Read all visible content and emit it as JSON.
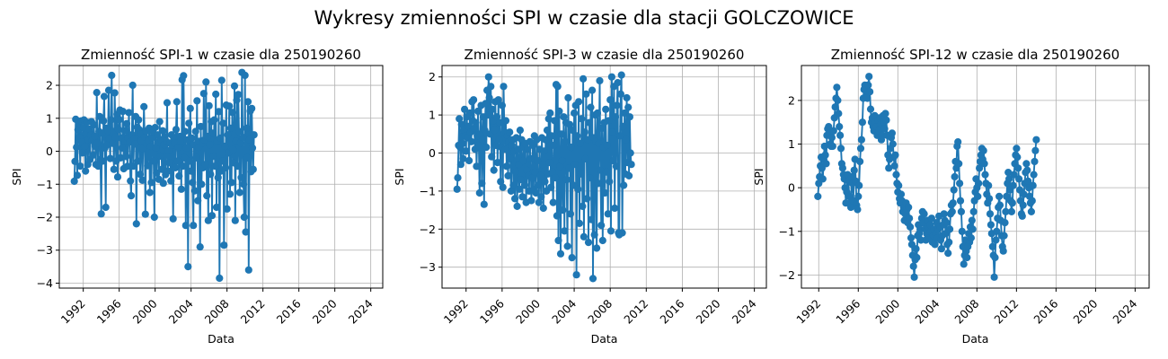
{
  "figure": {
    "suptitle": "Wykresy zmienności SPI w czasie dla stacji GOLCZOWICE",
    "series_color": "#1f77b4"
  },
  "chart_data": [
    {
      "type": "line",
      "title": "Zmienność SPI-1 w czasie dla 250190260",
      "xlabel": "Data",
      "ylabel": "SPI",
      "x_start": "1991-01",
      "x_step": "month",
      "x_tick_labels": [
        "1992",
        "1996",
        "2000",
        "2004",
        "2008",
        "2012",
        "2016",
        "2020",
        "2024"
      ],
      "xlim": [
        "1989-05",
        "2025-05"
      ],
      "y_ticks": [
        -4,
        -3,
        -2,
        -1,
        0,
        1,
        2
      ],
      "ylim": [
        -4.15,
        2.6
      ],
      "grid": true,
      "marker": "circle",
      "values": [
        -0.91,
        -0.31,
        0.97,
        0.12,
        -0.73,
        0.65,
        0.83,
        0.41,
        -0.45,
        0.92,
        0.28,
        -0.05,
        0.71,
        0.95,
        0.15,
        -0.6,
        0.52,
        0.88,
        -0.4,
        0.35,
        0.67,
        -0.25,
        0.48,
        0.9,
        0.33,
        -0.12,
        0.8,
        0.45,
        0.15,
        -0.4,
        1.78,
        0.25,
        -0.45,
        0.6,
        1.05,
        -0.25,
        -1.9,
        0.55,
        -0.3,
        0.92,
        1.66,
        0.1,
        -1.7,
        0.7,
        0.2,
        0.63,
        1.85,
        0.39,
        -0.22,
        0.95,
        2.3,
        0.24,
        0.6,
        -0.55,
        1.77,
        0.43,
        -0.3,
        1.12,
        -0.78,
        0.66,
        0.96,
        1.25,
        -0.2,
        0.4,
        0.1,
        1.21,
        -0.53,
        0.63,
        0.3,
        -0.16,
        0.84,
        -0.46,
        0.39,
        1.17,
        0.28,
        -0.9,
        -1.35,
        0.5,
        2.0,
        -0.45,
        0.37,
        0.22,
        1.05,
        -2.2,
        0.73,
        -0.3,
        0.95,
        0.65,
        -0.7,
        0.52,
        0.31,
        -0.88,
        0.08,
        1.35,
        0.43,
        -1.91,
        0.61,
        0.2,
        -0.44,
        0.33,
        0.7,
        -1.25,
        0.15,
        -0.95,
        0.41,
        0.58,
        -0.3,
        -2.0,
        0.72,
        0.1,
        -0.66,
        0.5,
        0.28,
        -0.85,
        0.9,
        -0.15,
        0.35,
        -0.55,
        0.62,
        -0.97,
        0.2,
        0.44,
        -0.71,
        0.3,
        1.47,
        -0.6,
        0.02,
        -0.35,
        0.25,
        -0.9,
        0.5,
        0.18,
        -2.05,
        0.38,
        0.25,
        -0.5,
        0.66,
        1.5,
        -0.3,
        0.12,
        -0.75,
        0.45,
        0.3,
        -1.15,
        2.17,
        -0.45,
        2.29,
        -0.2,
        0.6,
        -2.25,
        0.1,
        0.35,
        -3.5,
        0.85,
        -0.3,
        1.3,
        -0.6,
        0.4,
        -0.95,
        -2.25,
        0.2,
        -1.2,
        0.6,
        -0.2,
        1.53,
        -1.5,
        0.12,
        0.3,
        -2.9,
        0.75,
        -1.0,
        0.25,
        -0.5,
        1.75,
        0.35,
        -0.4,
        2.1,
        -1.35,
        0.45,
        -2.1,
        1.38,
        0.2,
        -0.7,
        0.9,
        -1.95,
        0.55,
        -0.15,
        0.95,
        -0.45,
        1.73,
        -1.7,
        0.3,
        -0.8,
        1.2,
        -3.85,
        0.4,
        -0.6,
        2.15,
        -0.3,
        0.85,
        -2.85,
        0.15,
        -0.5,
        1.4,
        -1.75,
        0.5,
        -0.05,
        1.37,
        -1.3,
        0.7,
        -0.95,
        1.18,
        0.05,
        -0.35,
        1.98,
        -2.1,
        0.3,
        1.55,
        -0.45,
        1.72,
        0.6,
        -1.25,
        0.25,
        -0.8,
        2.39,
        0.42,
        -1.0,
        -2.0,
        2.3,
        -2.45,
        0.7,
        -0.2,
        1.5,
        -3.6,
        0.35,
        1.22,
        -0.62,
        1.3,
        0.1,
        -0.55,
        0.5
      ]
    },
    {
      "type": "line",
      "title": "Zmienność SPI-3 w czasie dla 250190260",
      "xlabel": "Data",
      "ylabel": "SPI",
      "x_start": "1991-01",
      "x_step": "month",
      "x_tick_labels": [
        "1992",
        "1996",
        "2000",
        "2004",
        "2008",
        "2012",
        "2016",
        "2020",
        "2024"
      ],
      "xlim": [
        "1989-05",
        "2025-05"
      ],
      "y_ticks": [
        -3,
        -2,
        -1,
        0,
        1,
        2
      ],
      "ylim": [
        -3.55,
        2.3
      ],
      "grid": true,
      "marker": "circle",
      "values": [
        -0.95,
        -0.65,
        0.2,
        0.9,
        0.15,
        -0.3,
        0.75,
        0.25,
        -0.15,
        0.6,
        1.15,
        0.45,
        0.05,
        0.95,
        0.4,
        0.7,
        -0.2,
        1.05,
        0.55,
        0.3,
        1.35,
        0.85,
        1.4,
        0.65,
        0.1,
        0.8,
        -0.35,
        0.45,
        1.1,
        0.2,
        -1.05,
        0.5,
        1.25,
        -0.8,
        0.35,
        0.95,
        -1.35,
        0.6,
        1.3,
        0.15,
        1.65,
        1.0,
        2.0,
        1.45,
        0.5,
        1.75,
        -0.1,
        1.15,
        0.85,
        -0.45,
        0.6,
        1.35,
        0.2,
        0.95,
        -0.25,
        1.4,
        0.35,
        0.8,
        -0.75,
        0.15,
        1.25,
        -0.9,
        1.75,
        0.55,
        0.1,
        0.85,
        -0.35,
        0.45,
        -0.6,
        0.3,
        0.55,
        -0.15,
        -1.0,
        0.2,
        0.35,
        -0.85,
        0.05,
        -1.2,
        -0.5,
        0.4,
        -1.4,
        0.1,
        -0.3,
        -0.95,
        0.6,
        -0.7,
        0.35,
        -1.15,
        -0.2,
        0.15,
        -0.85,
        0.25,
        -1.3,
        -0.45,
        0.1,
        -0.6,
        -1.0,
        0.3,
        -0.15,
        -1.25,
        -0.65,
        0.2,
        -0.95,
        0.45,
        -0.5,
        -1.05,
        0.35,
        -0.2,
        -0.85,
        -1.3,
        0.1,
        -0.6,
        -1.15,
        0.4,
        -0.3,
        -1.45,
        0.05,
        -0.75,
        0.35,
        -1.0,
        0.6,
        -0.55,
        0.9,
        -0.25,
        1.05,
        -0.9,
        0.45,
        -0.5,
        -1.3,
        0.2,
        0.85,
        -0.65,
        1.8,
        -1.65,
        1.75,
        -2.3,
        1.1,
        -0.35,
        -2.65,
        0.5,
        -0.2,
        -1.5,
        0.95,
        -2.05,
        0.3,
        0.8,
        -0.7,
        -2.45,
        1.45,
        -0.4,
        0.75,
        -1.6,
        0.15,
        -2.75,
        0.6,
        -0.85,
        1.05,
        -0.3,
        1.25,
        -3.2,
        0.45,
        -0.95,
        1.35,
        -1.85,
        0.25,
        -0.55,
        0.9,
        -1.4,
        1.95,
        -2.2,
        0.55,
        -0.15,
        1.55,
        -1.2,
        0.35,
        -2.35,
        0.8,
        -0.65,
        1.2,
        -1.75,
        1.65,
        -3.3,
        0.4,
        -2.15,
        1.0,
        0.3,
        -2.5,
        1.05,
        -0.8,
        0.25,
        1.9,
        -0.45,
        -1.9,
        0.65,
        -2.3,
        0.15,
        0.8,
        -1.05,
        1.15,
        -0.5,
        0.2,
        -1.6,
        0.85,
        -0.75,
        1.4,
        -2.05,
        2.0,
        0.55,
        -0.2,
        1.75,
        -1.45,
        0.95,
        -0.35,
        1.25,
        1.85,
        -2.1,
        -2.15,
        0.45,
        1.55,
        2.05,
        -2.1,
        0.7,
        -0.85,
        1.05,
        -0.55,
        0.35,
        1.45,
        -0.25,
        1.2,
        -0.6,
        0.95,
        0.0,
        -0.3
      ]
    },
    {
      "type": "line",
      "title": "Zmienność SPI-12 w czasie dla 250190260",
      "xlabel": "Data",
      "ylabel": "SPI",
      "x_start": "1991-12",
      "x_step": "month",
      "x_tick_labels": [
        "1992",
        "1996",
        "2000",
        "2004",
        "2008",
        "2012",
        "2016",
        "2020",
        "2024"
      ],
      "xlim": [
        "1990-04",
        "2025-06"
      ],
      "y_ticks": [
        -2,
        -1,
        0,
        1,
        2
      ],
      "ylim": [
        -2.3,
        2.8
      ],
      "grid": true,
      "marker": "circle",
      "values": [
        -0.2,
        0.1,
        0.25,
        0.5,
        0.7,
        0.45,
        0.2,
        0.65,
        0.95,
        0.75,
        0.55,
        1.2,
        1.35,
        1.4,
        1.25,
        1.0,
        0.95,
        1.15,
        0.95,
        1.3,
        1.6,
        1.85,
        2.05,
        2.3,
        2.0,
        1.7,
        1.4,
        1.2,
        0.9,
        0.55,
        0.45,
        0.3,
        0.2,
        0.0,
        -0.35,
        -0.1,
        0.3,
        0.15,
        -0.2,
        -0.35,
        -0.45,
        0.25,
        0.1,
        -0.3,
        0.4,
        0.65,
        0.15,
        -0.4,
        -0.5,
        -0.2,
        0.05,
        0.6,
        0.9,
        1.1,
        1.5,
        2.05,
        2.25,
        2.35,
        2.3,
        2.1,
        2.05,
        2.35,
        2.55,
        2.2,
        1.8,
        1.5,
        1.6,
        1.4,
        1.3,
        1.65,
        1.5,
        1.4,
        1.2,
        1.55,
        1.3,
        1.6,
        1.45,
        1.1,
        1.2,
        1.65,
        1.5,
        1.35,
        1.7,
        1.55,
        1.2,
        0.75,
        0.45,
        0.65,
        0.9,
        1.15,
        1.25,
        1.0,
        0.7,
        0.5,
        0.75,
        0.3,
        0.1,
        -0.1,
        0.05,
        -0.25,
        -0.35,
        -0.15,
        -0.3,
        -0.55,
        -0.45,
        -0.75,
        -0.6,
        -0.35,
        -0.5,
        -0.8,
        -0.45,
        -0.7,
        -0.9,
        -1.15,
        -1.3,
        -1.55,
        -1.8,
        -2.05,
        -1.65,
        -1.4,
        -1.6,
        -1.1,
        -0.85,
        -1.05,
        -0.95,
        -1.2,
        -0.7,
        -0.55,
        -0.8,
        -0.6,
        -0.95,
        -1.2,
        -1.05,
        -0.75,
        -0.9,
        -1.15,
        -0.85,
        -1.0,
        -0.7,
        -1.25,
        -1.1,
        -0.95,
        -1.3,
        -1.05,
        -0.8,
        -1.15,
        -0.95,
        -0.65,
        -0.9,
        -1.2,
        -1.4,
        -1.1,
        -0.85,
        -0.6,
        -0.75,
        -1.05,
        -0.8,
        -1.3,
        -1.5,
        -1.25,
        -0.95,
        -0.6,
        -0.4,
        -0.55,
        -0.35,
        -0.05,
        0.25,
        0.6,
        0.45,
        0.95,
        1.05,
        0.55,
        0.1,
        -0.3,
        -0.55,
        -1.0,
        -1.35,
        -1.75,
        -1.55,
        -1.2,
        -1.45,
        -1.6,
        -1.35,
        -1.05,
        -1.25,
        -0.9,
        -1.15,
        -0.75,
        -0.95,
        -0.55,
        -0.3,
        -0.1,
        0.2,
        0.0,
        -0.2,
        0.1,
        0.45,
        0.6,
        0.75,
        0.9,
        0.65,
        0.85,
        0.55,
        0.3,
        0.1,
        -0.15,
        -0.35,
        0.05,
        -0.25,
        -0.6,
        -0.85,
        -1.05,
        -1.35,
        -1.55,
        -2.05,
        -1.6,
        -1.2,
        -1.0,
        -0.7,
        -0.45,
        -0.2,
        -0.4,
        -0.75,
        -1.1,
        -1.35,
        -1.45,
        -1.1,
        -0.8,
        -0.55,
        -0.2,
        0.1,
        0.35,
        0.2,
        -0.05,
        -0.3,
        -0.55,
        -0.35,
        0.05,
        0.3,
        0.55,
        0.75,
        0.9,
        0.7,
        0.45,
        0.2,
        -0.05,
        -0.3,
        -0.6,
        -0.65,
        -0.4,
        -0.15,
        0.1,
        0.35,
        0.55,
        0.4,
        0.15,
        0.0,
        -0.2,
        -0.35,
        -0.55,
        -0.3,
        0.05,
        0.3,
        0.6,
        0.85,
        1.1
      ]
    }
  ]
}
